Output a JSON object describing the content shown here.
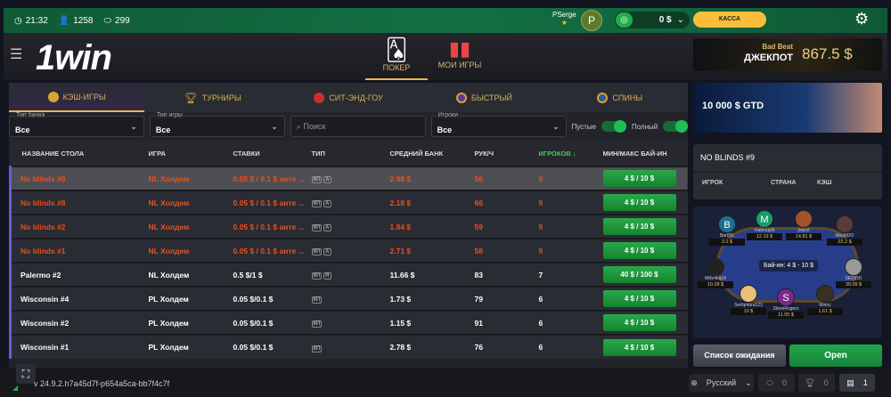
{
  "topbar": {
    "time": "21:32",
    "online": "1258",
    "tables": "299",
    "username": "PSerge",
    "avatar_letter": "P",
    "balance": "0 $",
    "cashier": "КАССА"
  },
  "header": {
    "logo": "1win",
    "nav": [
      {
        "label": "ПОКЕР"
      },
      {
        "label": "МОИ ИГРЫ"
      }
    ],
    "jackpot": {
      "line1": "Bad Beat",
      "line2": "ДЖЕКПОТ",
      "amount": "867.5 $"
    }
  },
  "tabs": [
    {
      "label": "КЭШ-ИГРЫ"
    },
    {
      "label": "ТУРНИРЫ"
    },
    {
      "label": "СИТ-ЭНД-ГОУ"
    },
    {
      "label": "БЫСТРЫЙ"
    },
    {
      "label": "СПИНЫ"
    }
  ],
  "filters": {
    "bank_type": {
      "label": "Тип банка",
      "value": "Все"
    },
    "game_type": {
      "label": "Тип игры",
      "value": "Все"
    },
    "search_placeholder": "Поиск",
    "players": {
      "label": "Игроки",
      "value": "Все"
    },
    "empty": "Пустые",
    "full": "Полный"
  },
  "table": {
    "headers": [
      "НАЗВАНИЕ СТОЛА",
      "ИГРА",
      "СТАВКИ",
      "ТИП",
      "СРЕДНИЙ БАНК",
      "РУК/Ч",
      "ИГРОКОВ ↓",
      "МИН/МАКС БАЙ-ИН"
    ],
    "rows": [
      {
        "name": "No blinds #9",
        "game": "NL Холдем",
        "stakes": "0.05 $ / 0.1 $ анте ...",
        "type": [
          "9П",
          "A"
        ],
        "pot": "2.98 $",
        "hands": "56",
        "players": "9",
        "buyin": "4 $ / 10 $"
      },
      {
        "name": "No blinds #8",
        "game": "NL Холдем",
        "stakes": "0.05 $ / 0.1 $ анте ...",
        "type": [
          "9П",
          "A"
        ],
        "pot": "2.18 $",
        "hands": "66",
        "players": "9",
        "buyin": "4 $ / 10 $"
      },
      {
        "name": "No blinds #2",
        "game": "NL Холдем",
        "stakes": "0.05 $ / 0.1 $ анте ...",
        "type": [
          "9П",
          "A"
        ],
        "pot": "1.84 $",
        "hands": "59",
        "players": "9",
        "buyin": "4 $ / 10 $"
      },
      {
        "name": "No blinds #1",
        "game": "NL Холдем",
        "stakes": "0.05 $ / 0.1 $ анте ...",
        "type": [
          "9П",
          "A"
        ],
        "pot": "2.71 $",
        "hands": "58",
        "players": "9",
        "buyin": "4 $ / 10 $"
      },
      {
        "name": "Palermo #2",
        "game": "NL Холдем",
        "stakes": "0.5 $/1 $",
        "type": [
          "9П",
          "R"
        ],
        "pot": "11.66 $",
        "hands": "83",
        "players": "7",
        "buyin": "40 $ / 100 $"
      },
      {
        "name": "Wisconsin #4",
        "game": "PL Холдем",
        "stakes": "0.05 $/0.1 $",
        "type": [
          "6П"
        ],
        "pot": "1.73 $",
        "hands": "79",
        "players": "6",
        "buyin": "4 $ / 10 $"
      },
      {
        "name": "Wisconsin #2",
        "game": "PL Холдем",
        "stakes": "0.05 $/0.1 $",
        "type": [
          "6П"
        ],
        "pot": "1.15 $",
        "hands": "91",
        "players": "6",
        "buyin": "4 $ / 10 $"
      },
      {
        "name": "Wisconsin #1",
        "game": "PL Холдем",
        "stakes": "0.05 $/0.1 $",
        "type": [
          "6П"
        ],
        "pot": "2.78 $",
        "hands": "76",
        "players": "6",
        "buyin": "4 $ / 10 $"
      }
    ]
  },
  "banner": {
    "text": "10 000 $ GTD"
  },
  "info": {
    "title": "NO BLINDS #9",
    "cols": [
      "ИГРОК",
      "СТРАНА",
      "КЭШ"
    ]
  },
  "preview": {
    "buyin": "Бай-ин: 4 $ - 10 $",
    "seats": [
      {
        "name": "Bar091",
        "letter": "B",
        "color": "#1e6e92",
        "amt": "3.2 $"
      },
      {
        "name": "maleuupl6",
        "letter": "M",
        "color": "#1b9a6c",
        "amt": "12.19 $"
      },
      {
        "name": "jrejcol",
        "letter": "",
        "color": "#a0522d",
        "amt": "14.81 $"
      },
      {
        "name": "ИксАЮО",
        "letter": "",
        "color": "#5a3a3a",
        "amt": "22.2 $"
      },
      {
        "name": "Millo4ka18",
        "letter": "",
        "color": "#222",
        "amt": "10.28 $"
      },
      {
        "name": "SEDJ1K",
        "letter": "",
        "color": "#999",
        "amt": "39.09 $"
      },
      {
        "name": "Serfqmbra123",
        "letter": "",
        "color": "#e8c07a",
        "amt": "10 $"
      },
      {
        "name": "SteveRogers",
        "letter": "S",
        "color": "#7b2a8c",
        "amt": "11.05 $"
      },
      {
        "name": "Minny",
        "letter": "",
        "color": "#3a3020",
        "amt": "1.61 $"
      }
    ]
  },
  "actions": {
    "waitlist": "Список ожидания",
    "open": "Open"
  },
  "footer": {
    "version": "v 24.9.2.h7a45d7f-p654a5ca-bb7f4c7f",
    "language": "Русский",
    "tables_count": "0",
    "tournaments_count": "0",
    "messages_count": "1"
  },
  "colors": {
    "accent": "#e7b84a",
    "hot": "#e8501e",
    "green": "#1fa84a",
    "top": "#137043"
  }
}
